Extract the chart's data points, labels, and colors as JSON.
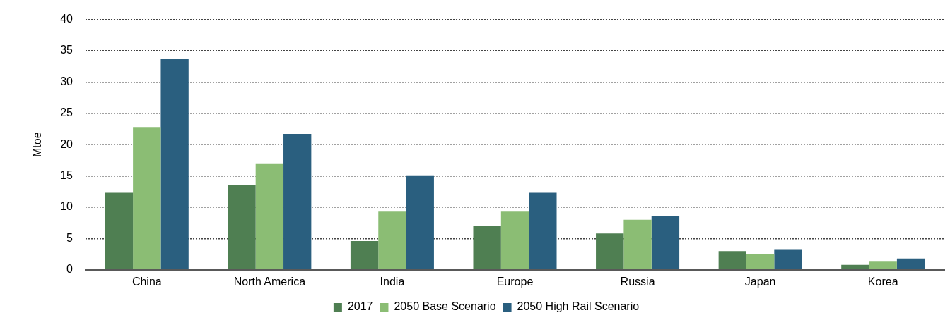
{
  "chart_data": {
    "type": "bar",
    "ylabel": "Mtoe",
    "categories": [
      "China",
      "North America",
      "India",
      "Europe",
      "Russia",
      "Japan",
      "Korea"
    ],
    "series": [
      {
        "name": "2017",
        "color": "#4f7f52",
        "values": [
          12.3,
          13.6,
          4.6,
          7.0,
          5.8,
          3.0,
          0.8
        ]
      },
      {
        "name": "2050 Base Scenario",
        "color": "#8bbd74",
        "values": [
          22.8,
          17.0,
          9.3,
          9.3,
          8.0,
          2.5,
          1.3
        ]
      },
      {
        "name": "2050 High Rail Scenario",
        "color": "#2a5f7f",
        "values": [
          33.7,
          21.7,
          15.1,
          12.3,
          8.6,
          3.3,
          1.8
        ]
      }
    ],
    "ylim": [
      0,
      40
    ],
    "yticks": [
      0,
      5,
      10,
      15,
      20,
      25,
      30,
      35,
      40
    ],
    "grid": "y",
    "legend": "bottom"
  }
}
